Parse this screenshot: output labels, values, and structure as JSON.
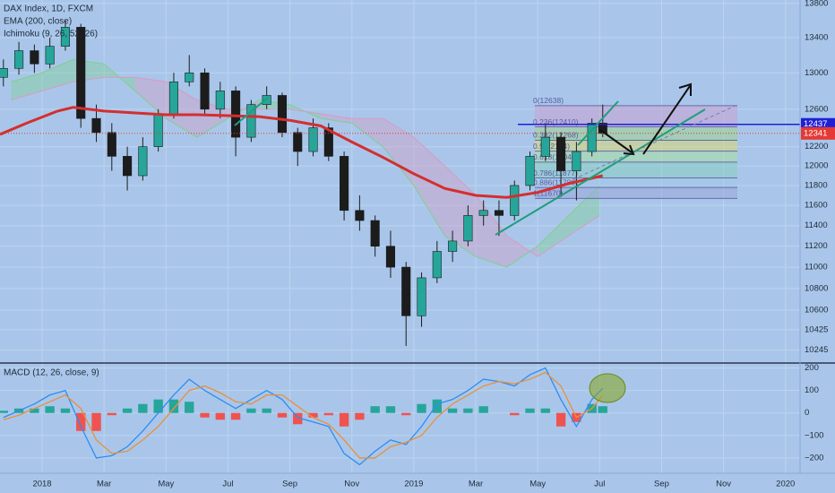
{
  "chart_data": [
    {
      "type": "candlestick",
      "title": "DAX Index, 1D, FXCM",
      "x": [
        -1.25,
        -0.75,
        -0.25,
        0.25,
        0.75,
        1.25,
        1.75,
        2.25,
        2.75,
        3.25,
        3.75,
        4.25,
        4.75,
        5.25,
        5.75,
        6.25,
        6.75,
        7.25,
        7.75,
        8.25,
        8.75,
        9.25,
        9.75,
        10.25,
        10.75,
        11.25,
        11.75,
        12.25,
        12.75,
        13.25,
        13.75,
        14.25,
        14.75,
        15.25,
        15.75,
        16.25,
        16.75,
        17.25,
        17.75,
        18.1
      ],
      "open": [
        12950,
        13050,
        13250,
        13100,
        13300,
        13520,
        12500,
        12350,
        12100,
        11900,
        12200,
        12550,
        12900,
        13000,
        12600,
        12800,
        12300,
        12650,
        12750,
        12350,
        12150,
        12400,
        12100,
        11550,
        11450,
        11200,
        11000,
        10550,
        10900,
        11150,
        11250,
        11500,
        11550,
        11500,
        11800,
        12100,
        12300,
        11950,
        12150,
        12450
      ],
      "high": [
        13150,
        13350,
        13320,
        13400,
        13600,
        13560,
        12650,
        12450,
        12200,
        12300,
        12600,
        13000,
        13200,
        13050,
        12900,
        12850,
        12700,
        12850,
        12780,
        12400,
        12500,
        12450,
        12150,
        11700,
        11500,
        11350,
        11050,
        10950,
        11250,
        11350,
        11600,
        11650,
        11650,
        11850,
        12150,
        12450,
        12350,
        12250,
        12500,
        12650
      ],
      "low": [
        12850,
        12980,
        13000,
        13050,
        13250,
        12400,
        12250,
        11950,
        11750,
        11850,
        12150,
        12500,
        12850,
        12550,
        12500,
        12100,
        12250,
        12600,
        12300,
        12000,
        12100,
        12050,
        11450,
        11350,
        11100,
        10900,
        10280,
        10450,
        10850,
        11050,
        11200,
        11400,
        11300,
        11450,
        11750,
        12050,
        11700,
        11650,
        12100,
        12300
      ],
      "close": [
        13050,
        13250,
        13100,
        13300,
        13520,
        12500,
        12350,
        12100,
        11900,
        12200,
        12550,
        12900,
        13000,
        12600,
        12800,
        12300,
        12650,
        12750,
        12350,
        12150,
        12400,
        12100,
        11550,
        11450,
        11200,
        11000,
        10550,
        10900,
        11150,
        11250,
        11500,
        11550,
        11500,
        11800,
        12100,
        12300,
        11950,
        12150,
        12450,
        12340
      ],
      "up_color": "#26a69a",
      "down_color": "#1c1c1c",
      "log_scale": true,
      "grid": true,
      "ylim": [
        10130,
        13840
      ],
      "yticks": [
        13800,
        13400,
        13000,
        12600,
        12200,
        12000,
        11800,
        11600,
        11400,
        11200,
        11000,
        10800,
        10600,
        10425,
        10245
      ],
      "ema": {
        "name": "EMA (200, close)",
        "color": "#d32f2f",
        "x": [
          -1.36,
          -0.5,
          0.5,
          1,
          2,
          3,
          4,
          5,
          6,
          7,
          8,
          9,
          10,
          11,
          12,
          13,
          14,
          15,
          16,
          17,
          18.1
        ],
        "values": [
          12330,
          12450,
          12580,
          12620,
          12580,
          12560,
          12540,
          12540,
          12530,
          12520,
          12480,
          12420,
          12250,
          12090,
          11920,
          11770,
          11700,
          11680,
          11730,
          11820,
          11900
        ]
      },
      "ichimoku": {
        "name": "Ichimoku (9, 26, 52, 26)",
        "up_color": "#7fcf8f",
        "down_color": "#d89ac4",
        "x": [
          -1,
          0,
          1,
          2,
          3,
          4,
          5,
          6,
          7,
          8,
          9,
          10,
          11,
          12,
          13,
          14,
          15,
          16,
          17,
          18
        ],
        "span_a": [
          12900,
          13000,
          13150,
          13100,
          12800,
          12500,
          12300,
          12500,
          12700,
          12650,
          12500,
          12450,
          12200,
          11800,
          11300,
          11100,
          11000,
          11200,
          11500,
          11800
        ],
        "span_b": [
          12700,
          12800,
          12900,
          12950,
          12950,
          12900,
          12700,
          12600,
          12600,
          12600,
          12550,
          12500,
          12500,
          12300,
          12000,
          11700,
          11300,
          11100,
          11300,
          11500
        ]
      },
      "price_markers": [
        {
          "value": 12437,
          "color": "#1f1fd6"
        },
        {
          "value": 12341,
          "color": "#e53935"
        }
      ],
      "fibonacci": [
        {
          "value": 12638,
          "label": "0(12638)"
        },
        {
          "value": 12410,
          "label": "0.236(12410)"
        },
        {
          "value": 12268,
          "label": "0.382(12268)"
        },
        {
          "value": 12154,
          "label": "0.5(12154)"
        },
        {
          "value": 12040,
          "label": "0.618(12040)"
        },
        {
          "value": 11877,
          "label": "0.786(11877)"
        },
        {
          "value": 11780,
          "label": "0.886(11780)"
        },
        {
          "value": 11670,
          "label": "1(11670)"
        }
      ]
    },
    {
      "type": "macd",
      "title": "MACD (12, 26, close, 9)",
      "x": [
        -1.25,
        -0.75,
        -0.25,
        0.25,
        0.75,
        1.25,
        1.75,
        2.25,
        2.75,
        3.25,
        3.75,
        4.25,
        4.75,
        5.25,
        5.75,
        6.25,
        6.75,
        7.25,
        7.75,
        8.25,
        8.75,
        9.25,
        9.75,
        10.25,
        10.75,
        11.25,
        11.75,
        12.25,
        12.75,
        13.25,
        13.75,
        14.25,
        14.75,
        15.25,
        15.75,
        16.25,
        16.75,
        17.25,
        17.75,
        18.1
      ],
      "histogram": [
        10,
        20,
        20,
        30,
        20,
        -80,
        -80,
        -10,
        20,
        40,
        60,
        60,
        50,
        -20,
        -30,
        -30,
        20,
        20,
        -20,
        -50,
        -20,
        -10,
        -60,
        -30,
        30,
        30,
        -10,
        40,
        60,
        20,
        20,
        30,
        0,
        -10,
        20,
        20,
        -60,
        -40,
        40,
        30
      ],
      "hist_up_color": "#26a69a",
      "hist_down_color": "#ef5350",
      "series": [
        {
          "color": "#2f8cf0",
          "values": [
            -20,
            10,
            40,
            80,
            100,
            -60,
            -200,
            -190,
            -150,
            -80,
            0,
            80,
            150,
            100,
            60,
            20,
            60,
            100,
            60,
            -20,
            -40,
            -60,
            -180,
            -230,
            -170,
            -120,
            -140,
            -60,
            40,
            60,
            100,
            150,
            140,
            120,
            170,
            200,
            60,
            -60,
            60,
            110
          ]
        },
        {
          "color": "#e8913a",
          "values": [
            -30,
            -10,
            20,
            50,
            80,
            20,
            -120,
            -180,
            -170,
            -120,
            -60,
            20,
            100,
            120,
            90,
            50,
            40,
            80,
            80,
            30,
            -20,
            -50,
            -120,
            -200,
            -200,
            -150,
            -130,
            -100,
            -20,
            40,
            80,
            120,
            140,
            130,
            150,
            180,
            120,
            -20,
            20,
            80
          ]
        }
      ],
      "ylim": [
        -268,
        222
      ],
      "yticks": [
        200,
        100,
        0,
        {
          "value": -100,
          "label": "−100"
        },
        {
          "value": -200,
          "label": "−200"
        }
      ],
      "xlim": [
        -1.36,
        24.47
      ],
      "xticks": [
        {
          "value": 0,
          "label": "2018"
        },
        {
          "value": 2,
          "label": "Mar"
        },
        {
          "value": 4,
          "label": "May"
        },
        {
          "value": 6,
          "label": "Jul"
        },
        {
          "value": 8,
          "label": "Sep"
        },
        {
          "value": 10,
          "label": "Nov"
        },
        {
          "value": 12,
          "label": "2019"
        },
        {
          "value": 14,
          "label": "Mar"
        },
        {
          "value": 16,
          "label": "May"
        },
        {
          "value": 18,
          "label": "Jul"
        },
        {
          "value": 20,
          "label": "Sep"
        },
        {
          "value": 22,
          "label": "Nov"
        },
        {
          "value": 24,
          "label": "2020"
        }
      ]
    }
  ]
}
